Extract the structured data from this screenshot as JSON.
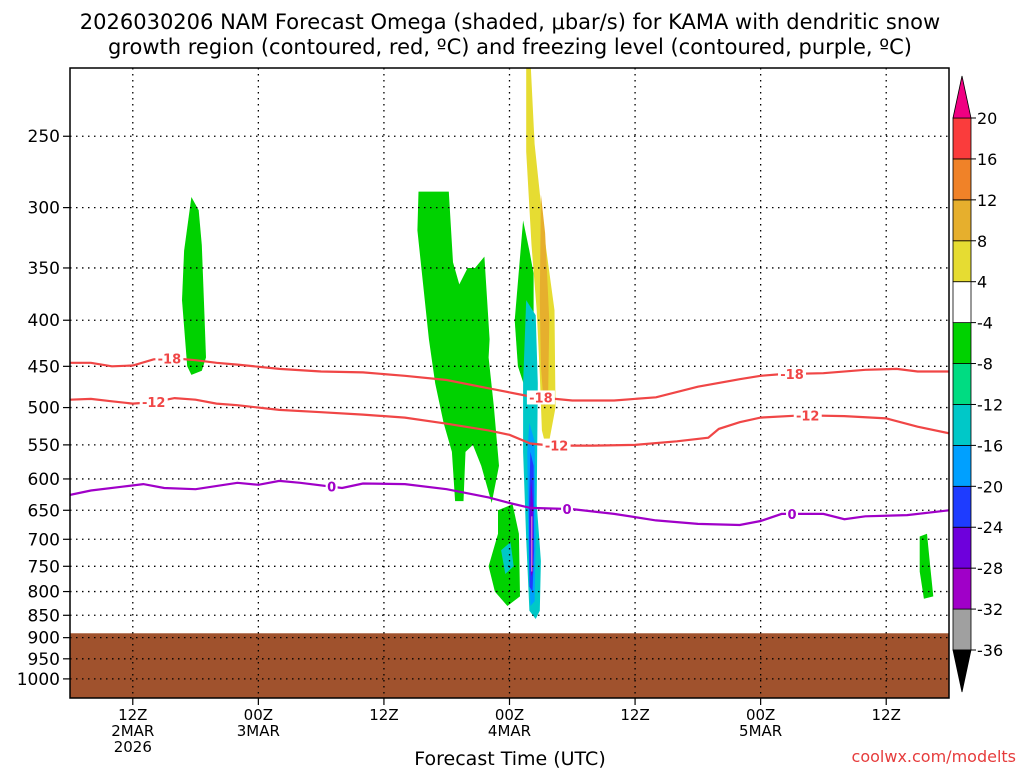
{
  "chart_data": {
    "type": "heatmap",
    "title_lines": [
      "2026030206 NAM Forecast Omega (shaded, μbar/s) for KAMA with dendritic snow",
      "growth region (contoured, red, ºC) and freezing level (contoured, purple, ºC)"
    ],
    "xlabel": "Forecast Time (UTC)",
    "credit": "coolwx.com/modelts",
    "y_axis": {
      "quantity": "pressure (mb)",
      "scale": "log",
      "inverted": true,
      "range": [
        210,
        1050
      ],
      "tick_values": [
        250,
        300,
        350,
        400,
        450,
        500,
        550,
        600,
        650,
        700,
        750,
        800,
        850,
        900,
        950,
        1000
      ],
      "tick_labels": [
        "250",
        "300",
        "350",
        "400",
        "450",
        "500",
        "550",
        "600",
        "650",
        "700",
        "750",
        "800",
        "850",
        "900",
        "950",
        "1000"
      ]
    },
    "x_axis": {
      "quantity": "forecast hour from 2026-03-02 06Z",
      "range": [
        0,
        84
      ],
      "ticks": [
        {
          "hour": 6,
          "lines": [
            "12Z",
            "2MAR",
            "2026"
          ]
        },
        {
          "hour": 18,
          "lines": [
            "00Z",
            "3MAR"
          ]
        },
        {
          "hour": 30,
          "lines": [
            "12Z"
          ]
        },
        {
          "hour": 42,
          "lines": [
            "00Z",
            "4MAR"
          ]
        },
        {
          "hour": 54,
          "lines": [
            "12Z"
          ]
        },
        {
          "hour": 66,
          "lines": [
            "00Z",
            "5MAR"
          ]
        },
        {
          "hour": 78,
          "lines": [
            "12Z"
          ]
        }
      ]
    },
    "grid": true,
    "terrain": {
      "color": "#a0522d",
      "surface_pressure_mb": 890
    },
    "colorbar": {
      "levels": [
        -36,
        -32,
        -28,
        -24,
        -20,
        -16,
        -12,
        -8,
        -4,
        4,
        8,
        12,
        16,
        20
      ],
      "labels": [
        "-36",
        "-32",
        "-28",
        "-24",
        "-20",
        "-16",
        "-12",
        "-8",
        "-4",
        "4",
        "8",
        "12",
        "16",
        "20"
      ],
      "colors": [
        "#a0a0a0",
        "#a000c8",
        "#6e00dc",
        "#1e3cff",
        "#00a0ff",
        "#00c8c8",
        "#00dc82",
        "#00d200",
        "#ffffff",
        "#e6dc32",
        "#e6af2d",
        "#f08228",
        "#fa3c3c"
      ],
      "under_color": "#000000",
      "over_color": "#f00082"
    },
    "omega_regions": [
      {
        "color": "#00d200",
        "points": [
          [
            11.2,
            450
          ],
          [
            10.7,
            380
          ],
          [
            10.9,
            335
          ],
          [
            11.6,
            292
          ],
          [
            12.3,
            302
          ],
          [
            12.6,
            330
          ],
          [
            12.8,
            380
          ],
          [
            13.0,
            440
          ],
          [
            12.6,
            455
          ],
          [
            11.6,
            460
          ]
        ]
      },
      {
        "color": "#00d200",
        "points": [
          [
            33.2,
            318
          ],
          [
            33.3,
            288
          ],
          [
            36.2,
            288
          ],
          [
            36.6,
            345
          ],
          [
            37.2,
            365
          ],
          [
            38.0,
            350
          ],
          [
            38.7,
            350
          ],
          [
            39.6,
            340
          ],
          [
            40.1,
            420
          ],
          [
            40.0,
            440
          ],
          [
            40.5,
            498
          ],
          [
            41.0,
            580
          ],
          [
            40.3,
            638
          ],
          [
            39.3,
            580
          ],
          [
            38.5,
            550
          ],
          [
            37.8,
            560
          ],
          [
            37.6,
            635
          ],
          [
            36.8,
            635
          ],
          [
            36.5,
            560
          ],
          [
            35.7,
            520
          ],
          [
            34.9,
            470
          ],
          [
            34.3,
            420
          ]
        ]
      },
      {
        "color": "#00d200",
        "points": [
          [
            40.9,
            650
          ],
          [
            40.9,
            690
          ],
          [
            40.0,
            750
          ],
          [
            40.6,
            800
          ],
          [
            41.8,
            830
          ],
          [
            43.0,
            810
          ],
          [
            42.9,
            690
          ],
          [
            42.3,
            640
          ]
        ]
      },
      {
        "color": "#00d200",
        "points": [
          [
            42.5,
            400
          ],
          [
            43.3,
            310
          ],
          [
            43.9,
            335
          ],
          [
            44.3,
            355
          ],
          [
            44.3,
            460
          ],
          [
            43.6,
            480
          ],
          [
            42.8,
            450
          ]
        ]
      },
      {
        "color": "#00d200",
        "points": [
          [
            81.2,
            695
          ],
          [
            81.9,
            690
          ],
          [
            82.2,
            750
          ],
          [
            82.5,
            810
          ],
          [
            81.6,
            815
          ],
          [
            81.2,
            760
          ]
        ]
      },
      {
        "color": "#00c8c8",
        "points": [
          [
            43.6,
            380
          ],
          [
            44.5,
            395
          ],
          [
            44.7,
            470
          ],
          [
            44.6,
            640
          ],
          [
            45.0,
            740
          ],
          [
            44.9,
            840
          ],
          [
            44.5,
            858
          ],
          [
            43.9,
            840
          ],
          [
            43.6,
            700
          ],
          [
            43.3,
            560
          ],
          [
            43.3,
            470
          ]
        ]
      },
      {
        "color": "#00c8c8",
        "points": [
          [
            41.2,
            720
          ],
          [
            42.1,
            705
          ],
          [
            42.4,
            750
          ],
          [
            41.6,
            765
          ]
        ]
      },
      {
        "color": "#00a0ff",
        "points": [
          [
            43.9,
            520
          ],
          [
            44.4,
            545
          ],
          [
            44.5,
            700
          ],
          [
            44.4,
            820
          ],
          [
            44.0,
            830
          ],
          [
            43.8,
            700
          ],
          [
            43.7,
            560
          ]
        ]
      },
      {
        "color": "#1e3cff",
        "points": [
          [
            44.0,
            560
          ],
          [
            44.3,
            580
          ],
          [
            44.35,
            720
          ],
          [
            44.2,
            800
          ],
          [
            43.9,
            790
          ],
          [
            43.85,
            650
          ]
        ]
      },
      {
        "color": "#6e00dc",
        "points": [
          [
            44.05,
            600
          ],
          [
            44.25,
            640
          ],
          [
            44.25,
            760
          ],
          [
            44.05,
            770
          ],
          [
            43.95,
            660
          ]
        ]
      },
      {
        "color": "#e6a0c8",
        "points": [
          [
            44.08,
            660
          ],
          [
            44.18,
            660
          ],
          [
            44.18,
            760
          ],
          [
            44.08,
            760
          ]
        ]
      },
      {
        "color": "#e6dc32",
        "points": [
          [
            43.6,
            205
          ],
          [
            44.0,
            205
          ],
          [
            44.4,
            255
          ],
          [
            45.3,
            320
          ],
          [
            46.3,
            390
          ],
          [
            46.4,
            500
          ],
          [
            45.6,
            560
          ],
          [
            45.1,
            530
          ],
          [
            44.9,
            460
          ],
          [
            44.6,
            390
          ],
          [
            44.1,
            330
          ],
          [
            43.6,
            260
          ]
        ]
      },
      {
        "color": "#e6af2d",
        "points": [
          [
            45.0,
            290
          ],
          [
            45.4,
            320
          ],
          [
            45.8,
            400
          ],
          [
            45.7,
            480
          ],
          [
            45.3,
            500
          ],
          [
            45.0,
            450
          ],
          [
            44.9,
            380
          ]
        ]
      }
    ],
    "contours": [
      {
        "value": -18,
        "label": "-18",
        "color": "#f04646",
        "points": [
          [
            0,
            446
          ],
          [
            2,
            446
          ],
          [
            4,
            450
          ],
          [
            6,
            449
          ],
          [
            8,
            442
          ],
          [
            10,
            441
          ],
          [
            12,
            443
          ],
          [
            14,
            446
          ],
          [
            16,
            448
          ],
          [
            20,
            453
          ],
          [
            24,
            456
          ],
          [
            28,
            457
          ],
          [
            32,
            461
          ],
          [
            36,
            466
          ],
          [
            40,
            476
          ],
          [
            44,
            486
          ],
          [
            48,
            491
          ],
          [
            52,
            491
          ],
          [
            56,
            487
          ],
          [
            60,
            474
          ],
          [
            64,
            465
          ],
          [
            66,
            461
          ],
          [
            68,
            459
          ],
          [
            72,
            458
          ],
          [
            76,
            454
          ],
          [
            79,
            453
          ],
          [
            81,
            456
          ],
          [
            84,
            456
          ]
        ],
        "label_hours": [
          9.5,
          45.0,
          69.0
        ]
      },
      {
        "value": -12,
        "label": "-12",
        "color": "#f04646",
        "points": [
          [
            0,
            490
          ],
          [
            2,
            489
          ],
          [
            4,
            492
          ],
          [
            6,
            495
          ],
          [
            8,
            493
          ],
          [
            10,
            488
          ],
          [
            12,
            490
          ],
          [
            14,
            495
          ],
          [
            16,
            497
          ],
          [
            20,
            503
          ],
          [
            24,
            506
          ],
          [
            28,
            509
          ],
          [
            32,
            513
          ],
          [
            36,
            521
          ],
          [
            40,
            530
          ],
          [
            42,
            536
          ],
          [
            44,
            548
          ],
          [
            46,
            551
          ],
          [
            50,
            551
          ],
          [
            54,
            550
          ],
          [
            58,
            545
          ],
          [
            61,
            540
          ],
          [
            62,
            528
          ],
          [
            64,
            519
          ],
          [
            66,
            513
          ],
          [
            70,
            510
          ],
          [
            74,
            511
          ],
          [
            78,
            514
          ],
          [
            81,
            525
          ],
          [
            84,
            534
          ]
        ],
        "label_hours": [
          8.0,
          46.5,
          70.5
        ]
      },
      {
        "value": 0,
        "label": "0",
        "color": "#a000c8",
        "points": [
          [
            0,
            625
          ],
          [
            2,
            618
          ],
          [
            5,
            612
          ],
          [
            7,
            608
          ],
          [
            9,
            614
          ],
          [
            12,
            616
          ],
          [
            16,
            606
          ],
          [
            18,
            609
          ],
          [
            20,
            603
          ],
          [
            22,
            606
          ],
          [
            26,
            614
          ],
          [
            28,
            607
          ],
          [
            32,
            608
          ],
          [
            36,
            616
          ],
          [
            40,
            629
          ],
          [
            42,
            638
          ],
          [
            44,
            646
          ],
          [
            48,
            648
          ],
          [
            52,
            656
          ],
          [
            56,
            667
          ],
          [
            60,
            673
          ],
          [
            64,
            675
          ],
          [
            66,
            668
          ],
          [
            68,
            656
          ],
          [
            72,
            656
          ],
          [
            74,
            665
          ],
          [
            76,
            660
          ],
          [
            80,
            658
          ],
          [
            84,
            650
          ]
        ],
        "label_hours": [
          25.0,
          47.5,
          69.0
        ]
      }
    ]
  }
}
